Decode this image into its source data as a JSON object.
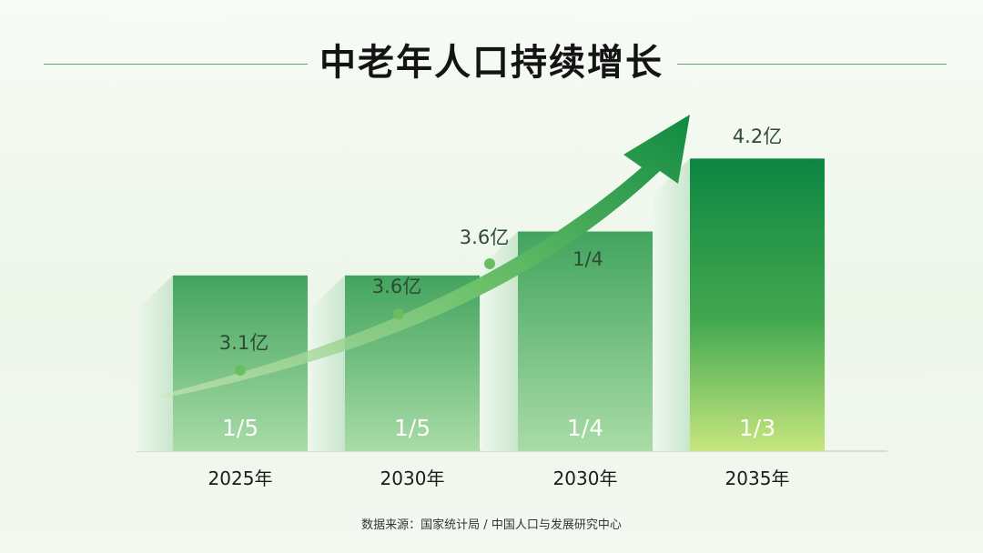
{
  "title": "中老年人口持续增长",
  "source": "数据来源：国家统计局 / 中国人口与发展研究中心",
  "colors": {
    "dark_green": "#138a45",
    "light_green": "#7fc98a",
    "lime": "#c6e582",
    "pale": "#d8ecd8"
  },
  "chart_data": {
    "type": "bar",
    "title": "中老年人口持续增长",
    "categories": [
      "2025年",
      "2030年",
      "2030年",
      "2035年"
    ],
    "bar_labels": [
      "1/5",
      "1/5",
      "1/4",
      "1/3"
    ],
    "values": [
      0.2,
      0.2,
      0.25,
      0.333
    ],
    "trend_labels": [
      "3.1亿",
      "3.6亿",
      "3.6亿",
      "4.2亿"
    ],
    "trend_values": [
      3.1,
      3.6,
      3.6,
      4.2
    ],
    "secondary_labels": [
      "1/4"
    ],
    "grid": false,
    "legend": "none"
  }
}
